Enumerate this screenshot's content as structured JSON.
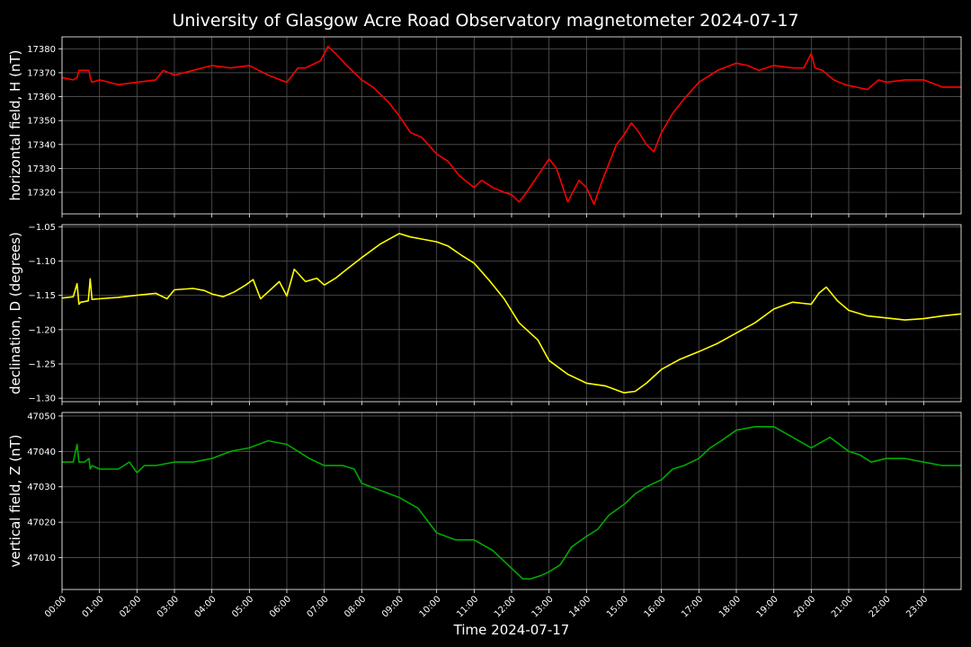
{
  "chart_data": {
    "type": "line",
    "title": "University of Glasgow Acre Road Observatory magnetometer 2024-07-17",
    "xlabel": "Time 2024-07-17",
    "x_unit": "hours",
    "xlim": [
      0,
      24
    ],
    "x_ticks": [
      "00:00",
      "01:00",
      "02:00",
      "03:00",
      "04:00",
      "05:00",
      "06:00",
      "07:00",
      "08:00",
      "09:00",
      "10:00",
      "11:00",
      "12:00",
      "13:00",
      "14:00",
      "15:00",
      "16:00",
      "17:00",
      "18:00",
      "19:00",
      "20:00",
      "21:00",
      "22:00",
      "23:00"
    ],
    "grid": true,
    "panels": [
      {
        "name": "H",
        "ylabel": "horizontal field, H (nT)",
        "color": "#ff0000",
        "ylim": [
          17311,
          17385
        ],
        "y_ticks": [
          17320,
          17330,
          17340,
          17350,
          17360,
          17370,
          17380
        ],
        "y_tick_labels": [
          "17320",
          "17330",
          "17340",
          "17350",
          "17360",
          "17370",
          "17380"
        ],
        "x": [
          0,
          0.3,
          0.4,
          0.45,
          0.6,
          0.72,
          0.75,
          0.8,
          1.0,
          1.5,
          2.0,
          2.5,
          2.7,
          3.0,
          3.5,
          4.0,
          4.5,
          5.0,
          5.5,
          6.0,
          6.1,
          6.3,
          6.5,
          6.9,
          7.1,
          7.3,
          7.6,
          8.0,
          8.3,
          8.7,
          9.0,
          9.3,
          9.6,
          10.0,
          10.3,
          10.6,
          11.0,
          11.2,
          11.5,
          11.8,
          12.0,
          12.2,
          12.4,
          12.7,
          13.0,
          13.2,
          13.5,
          13.8,
          14.0,
          14.2,
          14.4,
          14.6,
          14.8,
          15.0,
          15.2,
          15.4,
          15.6,
          15.8,
          16.0,
          16.3,
          16.6,
          17.0,
          17.5,
          18.0,
          18.3,
          18.6,
          19.0,
          19.5,
          19.8,
          20.0,
          20.1,
          20.3,
          20.6,
          20.9,
          21.2,
          21.5,
          21.8,
          22.0,
          22.5,
          23.0,
          23.5,
          24.0
        ],
        "y": [
          17368,
          17367,
          17368,
          17371,
          17371,
          17371,
          17368,
          17366,
          17367,
          17365,
          17366,
          17367,
          17371,
          17369,
          17371,
          17373,
          17372,
          17373,
          17369,
          17366,
          17368,
          17372,
          17372,
          17375,
          17381,
          17378,
          17373,
          17367,
          17364,
          17358,
          17352,
          17345,
          17343,
          17336,
          17333,
          17327,
          17322,
          17325,
          17322,
          17320,
          17319,
          17316,
          17320,
          17327,
          17334,
          17330,
          17316,
          17325,
          17322,
          17315,
          17324,
          17332,
          17340,
          17344,
          17349,
          17345,
          17340,
          17337,
          17345,
          17353,
          17359,
          17366,
          17371,
          17374,
          17373,
          17371,
          17373,
          17372,
          17372,
          17378,
          17372,
          17371,
          17367,
          17365,
          17364,
          17363,
          17367,
          17366,
          17367,
          17367,
          17364,
          17364
        ]
      },
      {
        "name": "D",
        "ylabel": "declination, D (degrees)",
        "color": "#ffff00",
        "ylim": [
          -1.305,
          -1.047
        ],
        "y_ticks": [
          -1.3,
          -1.25,
          -1.2,
          -1.15,
          -1.1,
          -1.05
        ],
        "y_tick_labels": [
          "−1.30",
          "−1.25",
          "−1.20",
          "−1.15",
          "−1.10",
          "−1.05"
        ],
        "x": [
          0,
          0.3,
          0.4,
          0.45,
          0.5,
          0.7,
          0.75,
          0.8,
          1.0,
          1.5,
          2.0,
          2.5,
          2.8,
          3.0,
          3.5,
          3.8,
          4.0,
          4.3,
          4.6,
          4.9,
          5.1,
          5.3,
          5.5,
          5.8,
          6.0,
          6.2,
          6.5,
          6.8,
          7.0,
          7.3,
          7.6,
          8.0,
          8.5,
          9.0,
          9.3,
          9.6,
          10.0,
          10.3,
          10.7,
          11.0,
          11.4,
          11.8,
          12.2,
          12.7,
          13.0,
          13.5,
          14.0,
          14.5,
          15.0,
          15.3,
          15.6,
          16.0,
          16.5,
          17.0,
          17.5,
          18.0,
          18.5,
          19.0,
          19.5,
          20.0,
          20.2,
          20.4,
          20.7,
          21.0,
          21.5,
          22.0,
          22.5,
          23.0,
          23.5,
          24.0
        ],
        "y": [
          -1.154,
          -1.152,
          -1.133,
          -1.163,
          -1.16,
          -1.158,
          -1.126,
          -1.156,
          -1.155,
          -1.153,
          -1.15,
          -1.147,
          -1.155,
          -1.142,
          -1.14,
          -1.143,
          -1.148,
          -1.152,
          -1.145,
          -1.135,
          -1.127,
          -1.155,
          -1.145,
          -1.13,
          -1.151,
          -1.112,
          -1.13,
          -1.125,
          -1.135,
          -1.125,
          -1.112,
          -1.095,
          -1.075,
          -1.06,
          -1.065,
          -1.068,
          -1.072,
          -1.078,
          -1.093,
          -1.103,
          -1.128,
          -1.155,
          -1.19,
          -1.215,
          -1.245,
          -1.265,
          -1.278,
          -1.282,
          -1.292,
          -1.29,
          -1.278,
          -1.258,
          -1.243,
          -1.232,
          -1.22,
          -1.205,
          -1.19,
          -1.17,
          -1.16,
          -1.163,
          -1.147,
          -1.138,
          -1.158,
          -1.172,
          -1.18,
          -1.183,
          -1.186,
          -1.184,
          -1.18,
          -1.177
        ]
      },
      {
        "name": "Z",
        "ylabel": "vertical field, Z (nT)",
        "color": "#00aa00",
        "ylim": [
          47001,
          47051
        ],
        "y_ticks": [
          47010,
          47020,
          47030,
          47040,
          47050
        ],
        "y_tick_labels": [
          "47010",
          "47020",
          "47030",
          "47040",
          "47050"
        ],
        "x": [
          0,
          0.3,
          0.4,
          0.45,
          0.6,
          0.72,
          0.75,
          0.8,
          1.0,
          1.5,
          1.8,
          2.0,
          2.2,
          2.5,
          3.0,
          3.5,
          4.0,
          4.5,
          5.0,
          5.5,
          6.0,
          6.3,
          6.6,
          7.0,
          7.5,
          7.8,
          8.0,
          8.5,
          9.0,
          9.5,
          10.0,
          10.5,
          11.0,
          11.5,
          12.0,
          12.3,
          12.5,
          12.8,
          13.0,
          13.3,
          13.6,
          14.0,
          14.3,
          14.6,
          15.0,
          15.3,
          15.6,
          16.0,
          16.3,
          16.6,
          17.0,
          17.3,
          17.6,
          18.0,
          18.5,
          19.0,
          19.5,
          20.0,
          20.5,
          21.0,
          21.3,
          21.6,
          22.0,
          22.5,
          23.0,
          23.5,
          24.0
        ],
        "y": [
          47037,
          47037,
          47042,
          47037,
          47037,
          47038,
          47035,
          47036,
          47035,
          47035,
          47037,
          47034,
          47036,
          47036,
          47037,
          47037,
          47038,
          47040,
          47041,
          47043,
          47042,
          47040,
          47038,
          47036,
          47036,
          47035,
          47031,
          47029,
          47027,
          47024,
          47017,
          47015,
          47015,
          47012,
          47007,
          47004,
          47004,
          47005,
          47006,
          47008,
          47013,
          47016,
          47018,
          47022,
          47025,
          47028,
          47030,
          47032,
          47035,
          47036,
          47038,
          47041,
          47043,
          47046,
          47047,
          47047,
          47044,
          47041,
          47044,
          47040,
          47039,
          47037,
          47038,
          47038,
          47037,
          47036,
          47036
        ]
      }
    ]
  }
}
